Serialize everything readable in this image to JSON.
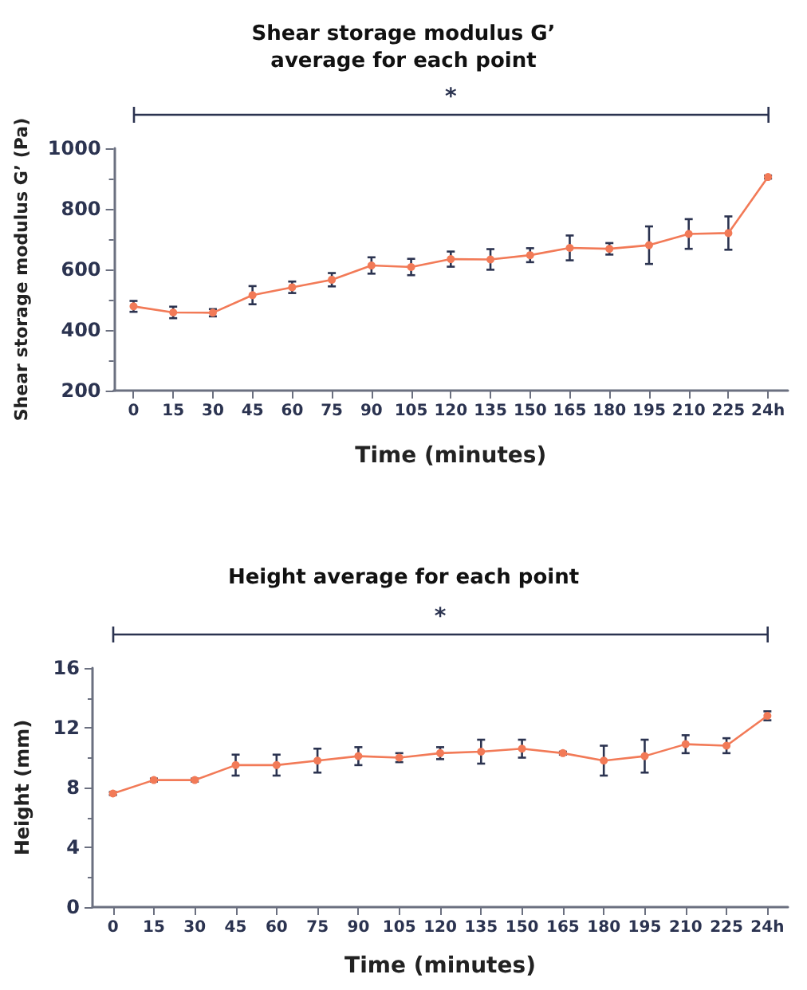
{
  "chart_data": [
    {
      "type": "line",
      "title": "Shear storage modulus G’\naverage for each point",
      "xlabel": "Time (minutes)",
      "ylabel": "Shear storage modulus G’ (Pa)",
      "categories": [
        "0",
        "15",
        "30",
        "45",
        "60",
        "75",
        "90",
        "105",
        "120",
        "135",
        "150",
        "165",
        "180",
        "195",
        "210",
        "225",
        "24h"
      ],
      "series": [
        {
          "color": "#f27a57",
          "values": [
            478,
            458,
            457,
            515,
            541,
            566,
            613,
            608,
            634,
            633,
            647,
            671,
            668,
            680,
            717,
            720,
            905
          ],
          "errors": [
            18,
            19,
            12,
            30,
            19,
            22,
            27,
            27,
            25,
            34,
            23,
            41,
            19,
            62,
            49,
            55,
            5
          ]
        }
      ],
      "ylim": [
        200,
        1000
      ],
      "yticks": [
        200,
        400,
        600,
        800,
        1000
      ],
      "grid": false,
      "marker": "circle",
      "line_style": "solid",
      "annotations": [
        "*"
      ]
    },
    {
      "type": "line",
      "title": "Height average for each point",
      "xlabel": "Time (minutes)",
      "ylabel": "Height (mm)",
      "categories": [
        "0",
        "15",
        "30",
        "45",
        "60",
        "75",
        "90",
        "105",
        "120",
        "135",
        "150",
        "165",
        "180",
        "195",
        "210",
        "225",
        "24h"
      ],
      "series": [
        {
          "color": "#f27a57",
          "values": [
            7.6,
            8.5,
            8.5,
            9.5,
            9.5,
            9.8,
            10.1,
            10.0,
            10.3,
            10.4,
            10.6,
            10.3,
            9.8,
            10.1,
            10.9,
            10.8,
            12.8
          ],
          "errors": [
            0.1,
            0.1,
            0.1,
            0.7,
            0.7,
            0.8,
            0.6,
            0.3,
            0.4,
            0.8,
            0.6,
            0.1,
            1.0,
            1.1,
            0.6,
            0.5,
            0.3
          ]
        }
      ],
      "ylim": [
        0,
        16
      ],
      "yticks": [
        0,
        4,
        8,
        12,
        16
      ],
      "grid": false,
      "marker": "circle",
      "line_style": "solid",
      "annotations": [
        "*"
      ]
    }
  ]
}
